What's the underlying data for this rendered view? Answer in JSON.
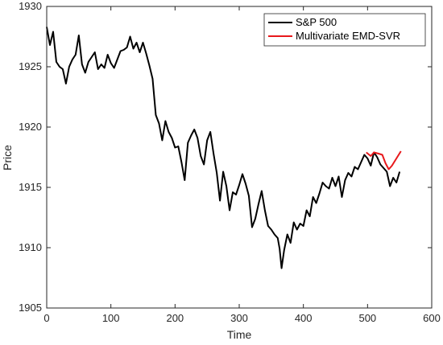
{
  "chart_data": {
    "type": "line",
    "xlabel": "Time",
    "ylabel": "Price",
    "xlim": [
      0,
      600
    ],
    "ylim": [
      1905,
      1930
    ],
    "xticks": [
      0,
      100,
      200,
      300,
      400,
      500,
      600
    ],
    "yticks": [
      1905,
      1910,
      1915,
      1920,
      1925,
      1930
    ],
    "grid": false,
    "legend_position": "top-right",
    "series": [
      {
        "name": "S&P 500",
        "color": "#000000",
        "points": [
          [
            0,
            1928.3
          ],
          [
            5,
            1926.8
          ],
          [
            10,
            1927.9
          ],
          [
            15,
            1925.4
          ],
          [
            20,
            1925.0
          ],
          [
            25,
            1924.8
          ],
          [
            30,
            1923.6
          ],
          [
            35,
            1925.0
          ],
          [
            40,
            1925.6
          ],
          [
            45,
            1926.0
          ],
          [
            50,
            1927.6
          ],
          [
            55,
            1925.2
          ],
          [
            60,
            1924.5
          ],
          [
            65,
            1925.4
          ],
          [
            70,
            1925.8
          ],
          [
            75,
            1926.2
          ],
          [
            80,
            1924.8
          ],
          [
            85,
            1925.2
          ],
          [
            90,
            1924.9
          ],
          [
            95,
            1926.0
          ],
          [
            100,
            1925.3
          ],
          [
            105,
            1924.9
          ],
          [
            110,
            1925.6
          ],
          [
            115,
            1926.3
          ],
          [
            120,
            1926.4
          ],
          [
            125,
            1926.6
          ],
          [
            130,
            1927.5
          ],
          [
            135,
            1926.5
          ],
          [
            140,
            1927.0
          ],
          [
            145,
            1926.2
          ],
          [
            150,
            1927.0
          ],
          [
            155,
            1926.1
          ],
          [
            160,
            1925.1
          ],
          [
            165,
            1924.0
          ],
          [
            170,
            1921.0
          ],
          [
            175,
            1920.3
          ],
          [
            180,
            1918.9
          ],
          [
            185,
            1920.5
          ],
          [
            190,
            1919.6
          ],
          [
            195,
            1919.1
          ],
          [
            200,
            1918.3
          ],
          [
            205,
            1918.4
          ],
          [
            210,
            1917.1
          ],
          [
            215,
            1915.6
          ],
          [
            220,
            1918.7
          ],
          [
            225,
            1919.3
          ],
          [
            230,
            1919.8
          ],
          [
            235,
            1919.1
          ],
          [
            240,
            1917.6
          ],
          [
            245,
            1916.9
          ],
          [
            250,
            1918.9
          ],
          [
            255,
            1919.6
          ],
          [
            260,
            1917.8
          ],
          [
            265,
            1916.2
          ],
          [
            270,
            1913.9
          ],
          [
            275,
            1916.3
          ],
          [
            280,
            1915.1
          ],
          [
            285,
            1913.1
          ],
          [
            290,
            1914.6
          ],
          [
            295,
            1914.4
          ],
          [
            300,
            1915.2
          ],
          [
            305,
            1916.1
          ],
          [
            310,
            1915.3
          ],
          [
            315,
            1914.3
          ],
          [
            320,
            1911.7
          ],
          [
            325,
            1912.4
          ],
          [
            330,
            1913.6
          ],
          [
            335,
            1914.7
          ],
          [
            340,
            1913.1
          ],
          [
            345,
            1911.8
          ],
          [
            350,
            1911.5
          ],
          [
            355,
            1911.1
          ],
          [
            360,
            1910.8
          ],
          [
            363,
            1909.9
          ],
          [
            366,
            1908.3
          ],
          [
            370,
            1909.8
          ],
          [
            375,
            1911.1
          ],
          [
            380,
            1910.4
          ],
          [
            385,
            1912.1
          ],
          [
            390,
            1911.5
          ],
          [
            395,
            1912.0
          ],
          [
            400,
            1911.8
          ],
          [
            405,
            1913.1
          ],
          [
            410,
            1912.6
          ],
          [
            415,
            1914.2
          ],
          [
            420,
            1913.7
          ],
          [
            425,
            1914.5
          ],
          [
            430,
            1915.4
          ],
          [
            435,
            1915.1
          ],
          [
            440,
            1914.9
          ],
          [
            445,
            1915.8
          ],
          [
            450,
            1915.1
          ],
          [
            455,
            1915.9
          ],
          [
            460,
            1914.2
          ],
          [
            465,
            1915.6
          ],
          [
            470,
            1916.2
          ],
          [
            475,
            1915.9
          ],
          [
            480,
            1916.7
          ],
          [
            485,
            1916.5
          ],
          [
            490,
            1917.1
          ],
          [
            495,
            1917.7
          ],
          [
            500,
            1917.4
          ],
          [
            505,
            1916.8
          ],
          [
            510,
            1917.9
          ],
          [
            515,
            1917.5
          ],
          [
            520,
            1916.9
          ],
          [
            525,
            1916.6
          ],
          [
            530,
            1916.3
          ],
          [
            535,
            1915.1
          ],
          [
            540,
            1915.8
          ],
          [
            545,
            1915.4
          ],
          [
            550,
            1916.3
          ]
        ]
      },
      {
        "name": "Multivariate EMD-SVR",
        "color": "#e8191c",
        "points": [
          [
            498,
            1917.9
          ],
          [
            505,
            1917.6
          ],
          [
            510,
            1917.9
          ],
          [
            517,
            1917.8
          ],
          [
            523,
            1917.7
          ],
          [
            528,
            1917.0
          ],
          [
            533,
            1916.5
          ],
          [
            538,
            1916.8
          ],
          [
            545,
            1917.4
          ],
          [
            552,
            1918.0
          ]
        ]
      }
    ]
  }
}
